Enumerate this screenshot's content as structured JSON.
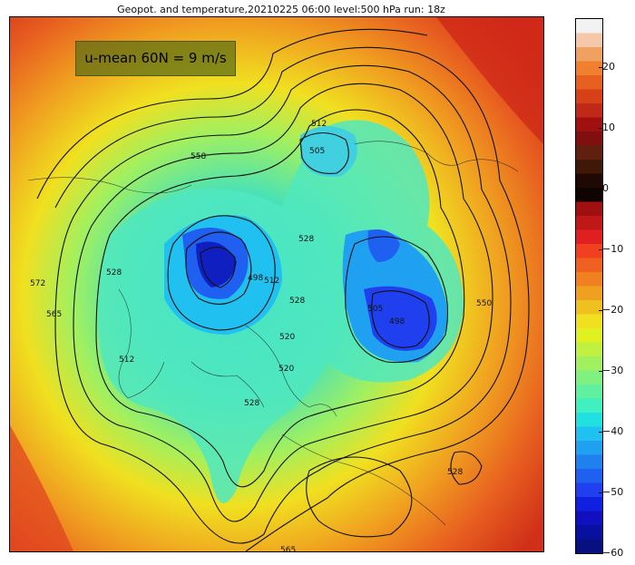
{
  "title": "Geopot. and temperature,20210225 06:00 level:500 hPa run: 18z",
  "annotation": "u-mean 60N = 9 m/s",
  "contour_labels": [
    "558",
    "512",
    "505",
    "528",
    "498",
    "512",
    "528",
    "505",
    "498",
    "528",
    "520",
    "512",
    "520",
    "528",
    "565",
    "572",
    "550",
    "528",
    "565"
  ],
  "colorbar": {
    "ticks": [
      "20",
      "10",
      "0",
      "−10",
      "−20",
      "−30",
      "−40",
      "−50",
      "−60"
    ],
    "range": [
      -60,
      28
    ],
    "colors_top_to_bottom": [
      "#f2f2f2",
      "#f4c8a8",
      "#f0a060",
      "#ee8030",
      "#e86020",
      "#d84018",
      "#c02818",
      "#a01010",
      "#801010",
      "#602010",
      "#401808",
      "#200804",
      "#100402",
      "#a01010",
      "#c01818",
      "#e02020",
      "#f04020",
      "#f06020",
      "#f08020",
      "#f0a020",
      "#f0c020",
      "#f0e020",
      "#e0f020",
      "#c0f040",
      "#a0f060",
      "#80f080",
      "#60f0a0",
      "#40f0c0",
      "#20e0e0",
      "#20c0f0",
      "#20a0f0",
      "#2080f0",
      "#2060f0",
      "#2040f0",
      "#1020e0",
      "#1010c0",
      "#0810a0",
      "#081080"
    ]
  }
}
